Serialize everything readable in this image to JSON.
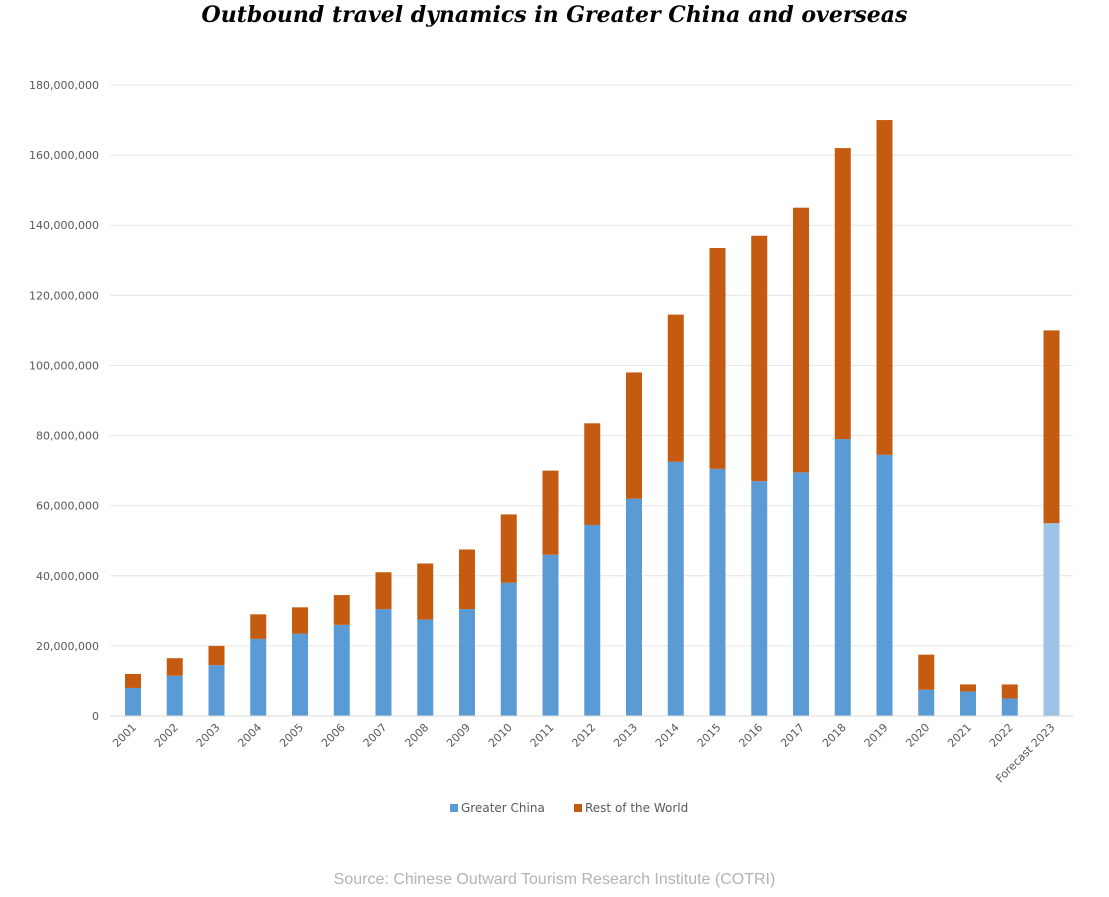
{
  "title": "Outbound travel dynamics in Greater China and overseas",
  "source": "Source: Chinese Outward Tourism Research Institute (COTRI)",
  "colors": {
    "greater_china": "#5b9bd5",
    "rest_of_world": "#c55a11",
    "forecast_greater_china": "#9dc3e6",
    "grid": "#e7e7e7"
  },
  "chart_data": {
    "type": "bar",
    "stacked": true,
    "title": "",
    "xlabel": "",
    "ylabel": "",
    "ylim": [
      0,
      180000000
    ],
    "y_ticks": [
      0,
      20000000,
      40000000,
      60000000,
      80000000,
      100000000,
      120000000,
      140000000,
      160000000,
      180000000
    ],
    "y_tick_labels": [
      "0",
      "20,000,000",
      "40,000,000",
      "60,000,000",
      "80,000,000",
      "100,000,000",
      "120,000,000",
      "140,000,000",
      "160,000,000",
      "180,000,000"
    ],
    "grid": true,
    "legend_position": "bottom",
    "categories": [
      "2001",
      "2002",
      "2003",
      "2004",
      "2005",
      "2006",
      "2007",
      "2008",
      "2009",
      "2010",
      "2011",
      "2012",
      "2013",
      "2014",
      "2015",
      "2016",
      "2017",
      "2018",
      "2019",
      "2020",
      "2021",
      "2022",
      "Forecast 2023"
    ],
    "series": [
      {
        "name": "Greater China",
        "values": [
          8000000,
          11500000,
          14500000,
          22000000,
          23500000,
          26000000,
          30500000,
          27500000,
          30500000,
          38000000,
          46000000,
          54500000,
          62000000,
          72500000,
          70500000,
          67000000,
          69500000,
          79000000,
          74500000,
          7500000,
          7000000,
          5000000,
          55000000
        ]
      },
      {
        "name": "Rest of the World",
        "values": [
          4000000,
          5000000,
          5500000,
          7000000,
          7500000,
          8500000,
          10500000,
          16000000,
          17000000,
          19500000,
          24000000,
          29000000,
          36000000,
          42000000,
          63000000,
          70000000,
          75500000,
          83000000,
          95500000,
          10000000,
          2000000,
          4000000,
          55000000
        ]
      }
    ]
  }
}
